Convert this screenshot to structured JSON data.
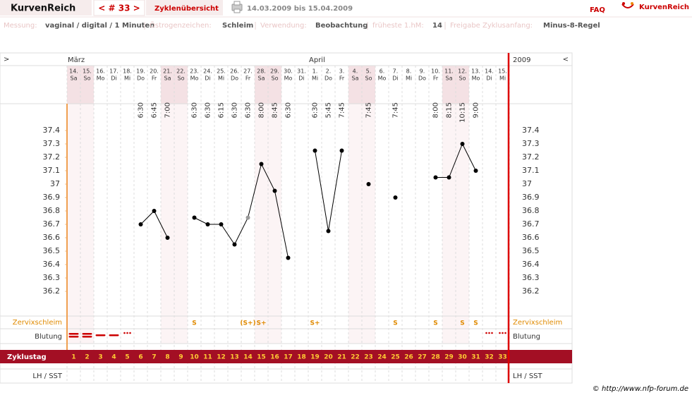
{
  "header": {
    "logo": "KurvenReich",
    "cycle_nav": "< # 33 >",
    "tab": "Zyklenübersicht",
    "period": "14.03.2009 bis 15.04.2009",
    "faq": "FAQ",
    "brand": "KurvenReich"
  },
  "info": [
    {
      "label": "Messung:",
      "value": "vaginal / digital / 1 Minuten"
    },
    {
      "label": "Östrogenzeichen:",
      "value": "Schleim"
    },
    {
      "label": "Verwendung:",
      "value": "Beobachtung"
    },
    {
      "label": "früheste 1.hM:",
      "value": "14"
    },
    {
      "label": "Freigabe Zyklusanfang:",
      "value": "Minus-8-Regel"
    }
  ],
  "chart_data": {
    "type": "line",
    "nav_left": ">",
    "nav_right": "<",
    "year": "2009",
    "months": [
      "März",
      null,
      null,
      null,
      null,
      null,
      null,
      null,
      null,
      null,
      null,
      null,
      null,
      null,
      null,
      null,
      null,
      null,
      "April",
      null,
      null,
      null,
      null,
      null,
      null,
      null,
      null,
      null,
      null,
      null,
      null,
      null,
      null
    ],
    "dates": [
      "14.",
      "15.",
      "16.",
      "17.",
      "18.",
      "19.",
      "20.",
      "21.",
      "22.",
      "23.",
      "24.",
      "25.",
      "26.",
      "27.",
      "28.",
      "29.",
      "30.",
      "31.",
      "1.",
      "2.",
      "3.",
      "4.",
      "5.",
      "6.",
      "7.",
      "8.",
      "9.",
      "10.",
      "11.",
      "12.",
      "13.",
      "14.",
      "15."
    ],
    "weekdays": [
      "Sa",
      "So",
      "Mo",
      "Di",
      "Mi",
      "Do",
      "Fr",
      "Sa",
      "So",
      "Mo",
      "Di",
      "Mi",
      "Do",
      "Fr",
      "Sa",
      "So",
      "Mo",
      "Di",
      "Mi",
      "Do",
      "Fr",
      "Sa",
      "So",
      "Mo",
      "Di",
      "Mi",
      "Do",
      "Fr",
      "Sa",
      "So",
      "Mo",
      "Di",
      "Mi"
    ],
    "shaded": [
      true,
      true,
      false,
      false,
      false,
      false,
      false,
      true,
      true,
      false,
      false,
      false,
      false,
      false,
      true,
      true,
      false,
      false,
      false,
      false,
      false,
      true,
      true,
      false,
      false,
      false,
      false,
      false,
      true,
      true,
      false,
      false,
      false
    ],
    "times": [
      null,
      null,
      null,
      null,
      null,
      "6:30",
      "6:45",
      "7:00",
      null,
      "6:30",
      "6:30",
      "6:15",
      "6:30",
      "6:30",
      "8:00",
      "8:45",
      "6:30",
      null,
      "6:30",
      "5:45",
      "7:45",
      null,
      "7:45",
      null,
      "7:45",
      null,
      null,
      "8:00",
      "8:15",
      "10:15",
      "9:00",
      null,
      null
    ],
    "x": [
      1,
      2,
      3,
      4,
      5,
      6,
      7,
      8,
      9,
      10,
      11,
      12,
      13,
      14,
      15,
      16,
      17,
      18,
      19,
      20,
      21,
      22,
      23,
      24,
      25,
      26,
      27,
      28,
      29,
      30,
      31,
      32,
      33
    ],
    "xlim": [
      0.5,
      33.5
    ],
    "values": [
      null,
      null,
      null,
      null,
      null,
      36.7,
      36.8,
      36.6,
      null,
      36.75,
      36.7,
      36.7,
      36.55,
      36.75,
      37.15,
      36.95,
      36.45,
      null,
      37.25,
      36.65,
      37.25,
      null,
      37.0,
      null,
      36.9,
      null,
      null,
      37.05,
      37.05,
      37.3,
      37.1,
      null,
      null
    ],
    "color": "#000000",
    "excluded_days": [
      14
    ],
    "excluded_color": "#999999",
    "ylim": [
      36.0,
      37.6
    ],
    "yticks": [
      36.2,
      36.3,
      36.4,
      36.5,
      36.6,
      36.7,
      36.8,
      36.9,
      37,
      37.1,
      37.2,
      37.3,
      37.4
    ],
    "mucus_label": "Zervixschleim",
    "mucus": [
      null,
      null,
      null,
      null,
      null,
      null,
      null,
      null,
      null,
      "S",
      null,
      null,
      null,
      "(S+)",
      "S+",
      null,
      null,
      null,
      "S+",
      null,
      null,
      null,
      null,
      null,
      "S",
      null,
      null,
      "S",
      null,
      "S",
      "S",
      null,
      null
    ],
    "bleeding_label": "Blutung",
    "bleeding": [
      3,
      3,
      2,
      2,
      1,
      null,
      null,
      null,
      null,
      null,
      null,
      null,
      null,
      null,
      null,
      null,
      null,
      null,
      null,
      null,
      null,
      null,
      null,
      null,
      null,
      null,
      null,
      null,
      null,
      null,
      null,
      1,
      1
    ],
    "cycle_day_label": "Zyklustag",
    "lh_label": "LH / SST"
  },
  "footer": "© http://www.nfp-forum.de"
}
